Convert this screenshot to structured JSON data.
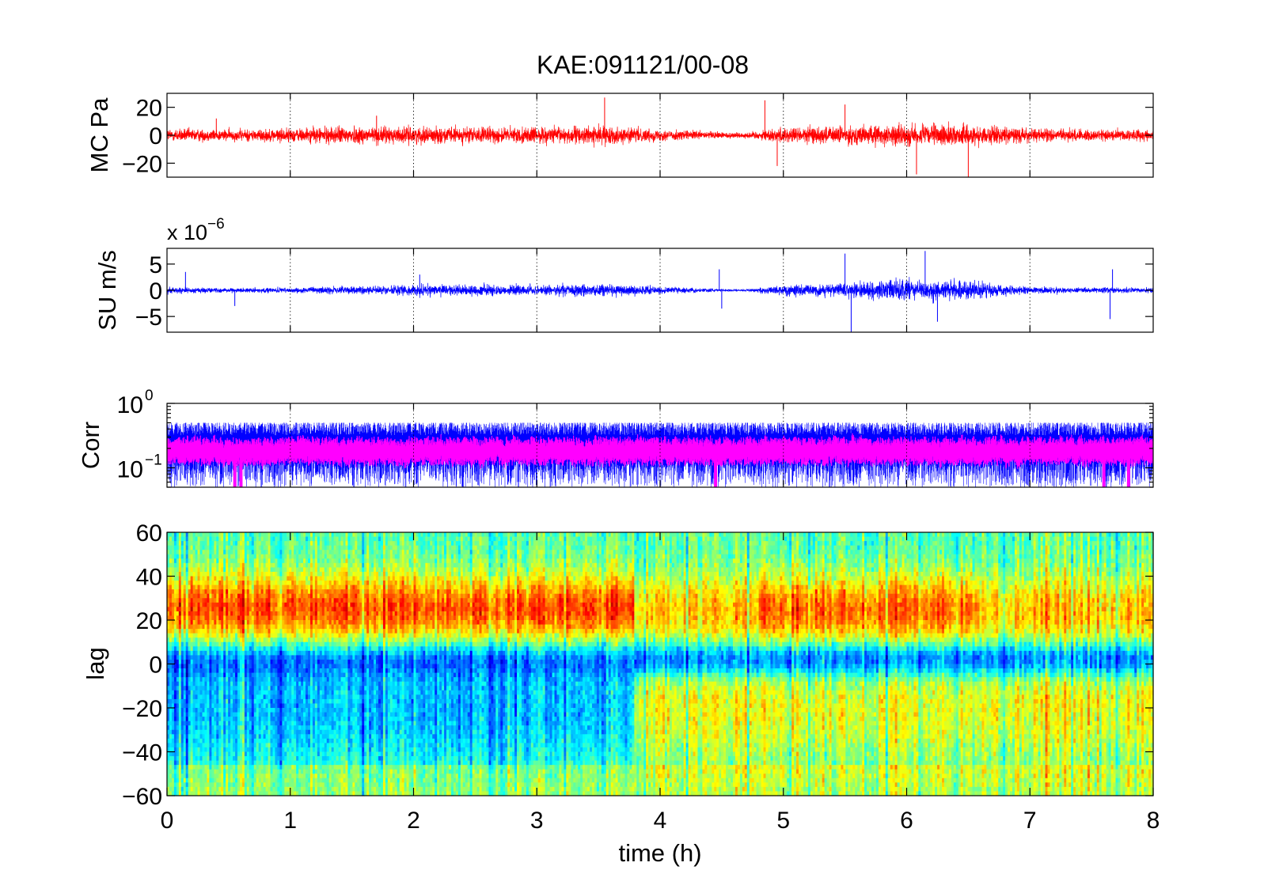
{
  "figure": {
    "title": "KAE:091121/00-08",
    "xlabel": "time (h)",
    "colors": {
      "pressure": "#ff0000",
      "seismic": "#0000ff",
      "corr_raw": "#0000ff",
      "corr_smooth": "#ff00ff"
    },
    "colormap": "jet"
  },
  "chart_data": [
    {
      "type": "line",
      "name": "pressure",
      "ylabel": "MC Pa",
      "xlim": [
        0,
        8
      ],
      "ylim": [
        -30,
        30
      ],
      "yticks": [
        -20,
        0,
        20
      ],
      "ytick_labels": [
        "−20",
        "0",
        "20"
      ],
      "grid": "x",
      "series": [
        {
          "color": "#ff0000",
          "typical_amplitude": 6,
          "envelope": [
            [
              0,
              6
            ],
            [
              0.5,
              5
            ],
            [
              1,
              6
            ],
            [
              1.5,
              8
            ],
            [
              2,
              7
            ],
            [
              2.5,
              7
            ],
            [
              3,
              7
            ],
            [
              3.5,
              8
            ],
            [
              4,
              5
            ],
            [
              4.5,
              3
            ],
            [
              4.7,
              2.5
            ],
            [
              5,
              7
            ],
            [
              5.5,
              8
            ],
            [
              6,
              9
            ],
            [
              6.5,
              9
            ],
            [
              7,
              6
            ],
            [
              7.5,
              5
            ],
            [
              8,
              5
            ]
          ],
          "spikes": [
            [
              3.55,
              27
            ],
            [
              4.85,
              25
            ],
            [
              5.5,
              22
            ],
            [
              6.5,
              -30
            ],
            [
              6.08,
              -28
            ],
            [
              4.95,
              -22
            ],
            [
              0.4,
              12
            ],
            [
              1.7,
              14
            ]
          ]
        }
      ]
    },
    {
      "type": "line",
      "name": "seismic",
      "ylabel": "SU m/s",
      "scale_label": "x 10",
      "scale_exponent": "−6",
      "xlim": [
        0,
        8
      ],
      "ylim": [
        -8,
        8
      ],
      "yticks": [
        -5,
        0,
        5
      ],
      "ytick_labels": [
        "−5",
        "0",
        "5"
      ],
      "grid": "x",
      "series": [
        {
          "color": "#0000ff",
          "envelope": [
            [
              0,
              0.8
            ],
            [
              0.5,
              0.5
            ],
            [
              1,
              0.6
            ],
            [
              1.5,
              1
            ],
            [
              2,
              1.2
            ],
            [
              2.5,
              1.3
            ],
            [
              3,
              1.2
            ],
            [
              3.5,
              1.5
            ],
            [
              4,
              0.8
            ],
            [
              4.5,
              0.3
            ],
            [
              4.7,
              0.3
            ],
            [
              5,
              1.2
            ],
            [
              5.5,
              1.6
            ],
            [
              6,
              2.5
            ],
            [
              6.5,
              2.2
            ],
            [
              7,
              0.8
            ],
            [
              7.5,
              0.6
            ],
            [
              8,
              0.6
            ]
          ],
          "spikes": [
            [
              0.15,
              3.5
            ],
            [
              0.55,
              -3
            ],
            [
              2.05,
              3
            ],
            [
              4.5,
              -3.5
            ],
            [
              5.5,
              7
            ],
            [
              5.55,
              -8
            ],
            [
              6.15,
              7.5
            ],
            [
              6.25,
              -6
            ],
            [
              7.65,
              -5.5
            ],
            [
              7.67,
              4
            ],
            [
              4.48,
              4
            ]
          ]
        }
      ]
    },
    {
      "type": "line",
      "name": "correlation",
      "ylabel": "Corr",
      "yscale": "log",
      "xlim": [
        0,
        8
      ],
      "ylim": [
        0.05,
        1
      ],
      "yticks": [
        0.1,
        1
      ],
      "ytick_labels": [
        {
          "base": "10",
          "exp": "−1"
        },
        {
          "base": "10",
          "exp": "0"
        }
      ],
      "grid": "x",
      "series": [
        {
          "color": "#0000ff",
          "role": "raw",
          "median": 0.18,
          "low": 0.06,
          "high": 0.4
        },
        {
          "color": "#ff00ff",
          "role": "smoothed",
          "median": 0.18,
          "low": 0.12,
          "high": 0.26
        }
      ]
    },
    {
      "type": "heatmap",
      "name": "lag",
      "ylabel": "lag",
      "xlim": [
        0,
        8
      ],
      "ylim": [
        -60,
        60
      ],
      "yticks": [
        -60,
        -40,
        -20,
        0,
        20,
        40,
        60
      ],
      "ytick_labels": [
        "−60",
        "−40",
        "−20",
        "0",
        "20",
        "40",
        "60"
      ],
      "xticks": [
        0,
        1,
        2,
        3,
        4,
        5,
        6,
        7,
        8
      ],
      "xtick_labels": [
        "0",
        "1",
        "2",
        "3",
        "4",
        "5",
        "6",
        "7",
        "8"
      ],
      "colormap": "jet",
      "bands": [
        {
          "lag_center": 25,
          "lag_width": 16,
          "value": 0.8
        },
        {
          "lag_center": 2,
          "lag_width": 8,
          "value": 0.15
        },
        {
          "lag_center": -20,
          "lag_width": 12,
          "value_before_h": 0.3,
          "value_after_h": 0.6,
          "switch_h": 3.8
        }
      ]
    }
  ]
}
